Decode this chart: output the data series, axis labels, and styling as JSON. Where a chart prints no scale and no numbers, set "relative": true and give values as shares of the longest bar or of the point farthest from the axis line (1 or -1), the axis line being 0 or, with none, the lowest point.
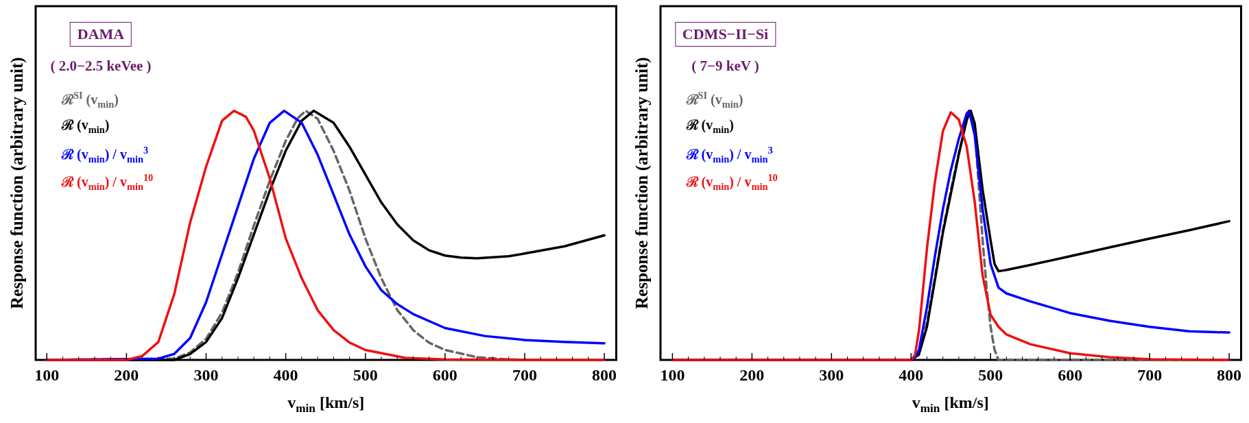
{
  "chart_data": [
    {
      "type": "line",
      "title": "DAMA",
      "subtitle": "( 2.0−2.5 keVee )",
      "xlabel": "v$_{min}$ [km/s]",
      "ylabel": "Response function (arbitrary unit)",
      "xlim": [
        86,
        815
      ],
      "xticks": [
        100,
        200,
        300,
        400,
        500,
        600,
        700,
        800
      ],
      "relative": true,
      "tick_labels": "x",
      "series": [
        {
          "name": "ℛ$^{SI}$ (v$_{min}$)",
          "color": "#666666",
          "line_style": "dashed",
          "x": [
            100,
            260,
            280,
            300,
            320,
            340,
            360,
            380,
            400,
            415,
            425,
            440,
            460,
            480,
            500,
            520,
            540,
            560,
            580,
            600,
            640,
            680,
            700,
            800
          ],
          "values": [
            0,
            0.005,
            0.03,
            0.085,
            0.19,
            0.35,
            0.54,
            0.72,
            0.88,
            0.97,
            1,
            0.968,
            0.84,
            0.68,
            0.488,
            0.328,
            0.2,
            0.12,
            0.069,
            0.04,
            0.011,
            0.002,
            0,
            0
          ]
        },
        {
          "name": "ℛ (v$_{min}$)",
          "color": "#000000",
          "line_style": "solid",
          "x": [
            100,
            260,
            280,
            300,
            320,
            340,
            360,
            380,
            400,
            420,
            435,
            460,
            480,
            500,
            520,
            540,
            560,
            580,
            600,
            620,
            640,
            680,
            700,
            750,
            800
          ],
          "values": [
            0,
            0,
            0.024,
            0.072,
            0.168,
            0.328,
            0.504,
            0.68,
            0.84,
            0.96,
            1,
            0.952,
            0.856,
            0.744,
            0.632,
            0.544,
            0.48,
            0.44,
            0.419,
            0.411,
            0.408,
            0.416,
            0.427,
            0.456,
            0.5
          ]
        },
        {
          "name": "ℛ (v$_{min}$) / v$_{min}$$^{3}$",
          "color": "#0000ff",
          "line_style": "solid",
          "x": [
            100,
            240,
            260,
            280,
            300,
            320,
            340,
            360,
            380,
            398,
            420,
            440,
            460,
            480,
            500,
            520,
            540,
            560,
            600,
            650,
            700,
            750,
            800
          ],
          "values": [
            0,
            0.005,
            0.024,
            0.088,
            0.232,
            0.424,
            0.616,
            0.808,
            0.952,
            1,
            0.952,
            0.824,
            0.664,
            0.504,
            0.376,
            0.28,
            0.224,
            0.184,
            0.128,
            0.096,
            0.08,
            0.072,
            0.067
          ]
        },
        {
          "name": "ℛ (v$_{min}$) / v$_{min}$$^{10}$",
          "color": "#ee1111",
          "line_style": "solid",
          "x": [
            100,
            200,
            220,
            240,
            260,
            280,
            300,
            320,
            335,
            350,
            360,
            380,
            400,
            420,
            440,
            460,
            480,
            500,
            550,
            600,
            800
          ],
          "values": [
            0,
            0,
            0.016,
            0.072,
            0.264,
            0.552,
            0.776,
            0.96,
            1,
            0.976,
            0.92,
            0.728,
            0.488,
            0.328,
            0.2,
            0.12,
            0.07,
            0.04,
            0.008,
            0.002,
            0
          ]
        }
      ]
    },
    {
      "type": "line",
      "title": "CDMS−II−Si",
      "subtitle": "( 7−9 keV )",
      "xlabel": "v$_{min}$ [km/s]",
      "ylabel": "Response function (arbitrary unit)",
      "xlim": [
        85,
        815
      ],
      "xticks": [
        100,
        200,
        300,
        400,
        500,
        600,
        700,
        800
      ],
      "relative": true,
      "tick_labels": "x",
      "series": [
        {
          "name": "ℛ$^{SI}$ (v$_{min}$)",
          "color": "#666666",
          "line_style": "dashed",
          "x": [
            100,
            400,
            410,
            420,
            430,
            440,
            450,
            460,
            470,
            475,
            480,
            490,
            495,
            500,
            505,
            510,
            800
          ],
          "values": [
            0,
            0,
            0.02,
            0.15,
            0.33,
            0.52,
            0.68,
            0.83,
            0.96,
            1,
            0.93,
            0.48,
            0.29,
            0.133,
            0.04,
            0,
            0
          ]
        },
        {
          "name": "ℛ (v$_{min}$)",
          "color": "#000000",
          "line_style": "solid",
          "x": [
            100,
            400,
            410,
            420,
            430,
            440,
            450,
            460,
            470,
            475,
            480,
            490,
            500,
            505,
            510,
            520,
            550,
            600,
            650,
            700,
            750,
            800
          ],
          "values": [
            0,
            0,
            0.024,
            0.133,
            0.32,
            0.51,
            0.666,
            0.824,
            0.965,
            1,
            0.95,
            0.683,
            0.48,
            0.385,
            0.356,
            0.361,
            0.381,
            0.416,
            0.452,
            0.487,
            0.521,
            0.557
          ]
        },
        {
          "name": "ℛ (v$_{min}$) / v$_{min}$$^{3}$",
          "color": "#0000ff",
          "line_style": "solid",
          "x": [
            100,
            400,
            405,
            410,
            420,
            430,
            440,
            450,
            460,
            470,
            473,
            480,
            490,
            500,
            510,
            520,
            550,
            600,
            650,
            700,
            750,
            800
          ],
          "values": [
            0,
            0,
            0.01,
            0.04,
            0.212,
            0.416,
            0.604,
            0.761,
            0.887,
            0.989,
            1,
            0.903,
            0.604,
            0.385,
            0.29,
            0.267,
            0.235,
            0.188,
            0.157,
            0.133,
            0.115,
            0.11
          ]
        },
        {
          "name": "ℛ (v$_{min}$) / v$_{min}$$^{10}$",
          "color": "#ee1111",
          "line_style": "solid",
          "x": [
            100,
            400,
            405,
            410,
            420,
            430,
            440,
            450,
            460,
            470,
            480,
            490,
            500,
            510,
            520,
            550,
            600,
            650,
            700,
            800
          ],
          "values": [
            0,
            0,
            0.02,
            0.118,
            0.447,
            0.714,
            0.918,
            0.994,
            0.965,
            0.856,
            0.636,
            0.338,
            0.181,
            0.133,
            0.102,
            0.063,
            0.027,
            0.011,
            0.003,
            0
          ]
        }
      ]
    }
  ]
}
